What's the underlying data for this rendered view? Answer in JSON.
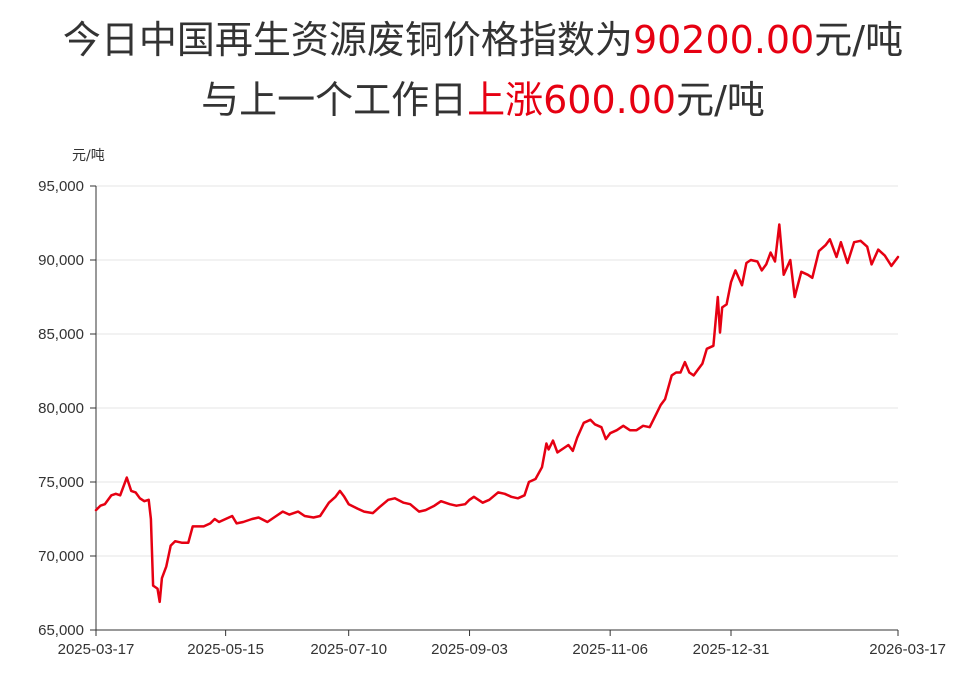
{
  "headline": {
    "line1_prefix": "今日中国再生资源废铜价格指数为",
    "line1_value": "90200.00",
    "line1_suffix": "元/吨",
    "line2_prefix": "与上一个工作日",
    "line2_change": "上涨600.00",
    "line2_suffix": "元/吨"
  },
  "colors": {
    "line": "#e60012",
    "highlight": "#e60012",
    "grid": "#e6e6e6",
    "axis": "#333333"
  },
  "chart_data": {
    "type": "line",
    "title": "",
    "xlabel": "",
    "ylabel": "元/吨",
    "x_axis_type": "date",
    "xlim": [
      "2025-03-17",
      "2026-03-17"
    ],
    "ylim": [
      65000,
      95000
    ],
    "grid": true,
    "legend": "none",
    "x_tick_labels": [
      "2025-03-17",
      "2025-05-15",
      "2025-07-10",
      "2025-09-03",
      "2025-11-06",
      "2025-12-31",
      "2026-03-17"
    ],
    "y_tick_labels": [
      "65,000",
      "70,000",
      "75,000",
      "80,000",
      "85,000",
      "90,000",
      "95,000"
    ],
    "y_tick_values": [
      65000,
      70000,
      75000,
      80000,
      85000,
      90000,
      95000
    ],
    "series": [
      {
        "values": [
          [
            "2025-03-17",
            73100
          ],
          [
            "2025-03-19",
            73400
          ],
          [
            "2025-03-21",
            73500
          ],
          [
            "2025-03-24",
            74100
          ],
          [
            "2025-03-26",
            74200
          ],
          [
            "2025-03-28",
            74100
          ],
          [
            "2025-03-31",
            75300
          ],
          [
            "2025-04-02",
            74400
          ],
          [
            "2025-04-04",
            74300
          ],
          [
            "2025-04-06",
            73900
          ],
          [
            "2025-04-08",
            73700
          ],
          [
            "2025-04-10",
            73800
          ],
          [
            "2025-04-11",
            72500
          ],
          [
            "2025-04-12",
            68000
          ],
          [
            "2025-04-14",
            67800
          ],
          [
            "2025-04-15",
            66900
          ],
          [
            "2025-04-16",
            68500
          ],
          [
            "2025-04-18",
            69300
          ],
          [
            "2025-04-20",
            70700
          ],
          [
            "2025-04-22",
            71000
          ],
          [
            "2025-04-25",
            70900
          ],
          [
            "2025-04-28",
            70900
          ],
          [
            "2025-04-30",
            72000
          ],
          [
            "2025-05-05",
            72000
          ],
          [
            "2025-05-08",
            72200
          ],
          [
            "2025-05-10",
            72500
          ],
          [
            "2025-05-12",
            72300
          ],
          [
            "2025-05-15",
            72500
          ],
          [
            "2025-05-18",
            72700
          ],
          [
            "2025-05-20",
            72200
          ],
          [
            "2025-05-23",
            72300
          ],
          [
            "2025-05-27",
            72500
          ],
          [
            "2025-05-30",
            72600
          ],
          [
            "2025-06-03",
            72300
          ],
          [
            "2025-06-06",
            72600
          ],
          [
            "2025-06-10",
            73000
          ],
          [
            "2025-06-13",
            72800
          ],
          [
            "2025-06-17",
            73000
          ],
          [
            "2025-06-20",
            72700
          ],
          [
            "2025-06-24",
            72600
          ],
          [
            "2025-06-27",
            72700
          ],
          [
            "2025-07-01",
            73600
          ],
          [
            "2025-07-04",
            74000
          ],
          [
            "2025-07-06",
            74400
          ],
          [
            "2025-07-08",
            74000
          ],
          [
            "2025-07-10",
            73500
          ],
          [
            "2025-07-14",
            73200
          ],
          [
            "2025-07-17",
            73000
          ],
          [
            "2025-07-21",
            72900
          ],
          [
            "2025-07-24",
            73300
          ],
          [
            "2025-07-28",
            73800
          ],
          [
            "2025-07-31",
            73900
          ],
          [
            "2025-08-04",
            73600
          ],
          [
            "2025-08-07",
            73500
          ],
          [
            "2025-08-11",
            73000
          ],
          [
            "2025-08-14",
            73100
          ],
          [
            "2025-08-18",
            73400
          ],
          [
            "2025-08-21",
            73700
          ],
          [
            "2025-08-25",
            73500
          ],
          [
            "2025-08-28",
            73400
          ],
          [
            "2025-09-01",
            73500
          ],
          [
            "2025-09-03",
            73800
          ],
          [
            "2025-09-05",
            74000
          ],
          [
            "2025-09-09",
            73600
          ],
          [
            "2025-09-12",
            73800
          ],
          [
            "2025-09-16",
            74300
          ],
          [
            "2025-09-19",
            74200
          ],
          [
            "2025-09-22",
            74000
          ],
          [
            "2025-09-25",
            73900
          ],
          [
            "2025-09-28",
            74100
          ],
          [
            "2025-09-30",
            75000
          ],
          [
            "2025-10-03",
            75200
          ],
          [
            "2025-10-06",
            76000
          ],
          [
            "2025-10-08",
            77600
          ],
          [
            "2025-10-09",
            77200
          ],
          [
            "2025-10-11",
            77800
          ],
          [
            "2025-10-13",
            77000
          ],
          [
            "2025-10-16",
            77300
          ],
          [
            "2025-10-18",
            77500
          ],
          [
            "2025-10-20",
            77100
          ],
          [
            "2025-10-22",
            78000
          ],
          [
            "2025-10-25",
            79000
          ],
          [
            "2025-10-28",
            79200
          ],
          [
            "2025-10-30",
            78900
          ],
          [
            "2025-11-02",
            78700
          ],
          [
            "2025-11-04",
            77900
          ],
          [
            "2025-11-06",
            78300
          ],
          [
            "2025-11-09",
            78500
          ],
          [
            "2025-11-12",
            78800
          ],
          [
            "2025-11-15",
            78500
          ],
          [
            "2025-11-18",
            78500
          ],
          [
            "2025-11-21",
            78800
          ],
          [
            "2025-11-24",
            78700
          ],
          [
            "2025-11-27",
            79600
          ],
          [
            "2025-11-29",
            80200
          ],
          [
            "2025-12-01",
            80600
          ],
          [
            "2025-12-04",
            82200
          ],
          [
            "2025-12-06",
            82400
          ],
          [
            "2025-12-08",
            82400
          ],
          [
            "2025-12-10",
            83100
          ],
          [
            "2025-12-12",
            82400
          ],
          [
            "2025-12-14",
            82200
          ],
          [
            "2025-12-16",
            82600
          ],
          [
            "2025-12-18",
            83000
          ],
          [
            "2025-12-20",
            84000
          ],
          [
            "2025-12-23",
            84200
          ],
          [
            "2025-12-25",
            87500
          ],
          [
            "2025-12-26",
            85100
          ],
          [
            "2025-12-27",
            86800
          ],
          [
            "2025-12-29",
            87000
          ],
          [
            "2025-12-31",
            88500
          ],
          [
            "2026-01-02",
            89300
          ],
          [
            "2026-01-05",
            88300
          ],
          [
            "2026-01-07",
            89800
          ],
          [
            "2026-01-09",
            90000
          ],
          [
            "2026-01-12",
            89900
          ],
          [
            "2026-01-14",
            89300
          ],
          [
            "2026-01-16",
            89700
          ],
          [
            "2026-01-18",
            90500
          ],
          [
            "2026-01-20",
            89900
          ],
          [
            "2026-01-22",
            92400
          ],
          [
            "2026-01-24",
            89000
          ],
          [
            "2026-01-27",
            90000
          ],
          [
            "2026-01-29",
            87500
          ],
          [
            "2026-02-01",
            89200
          ],
          [
            "2026-02-04",
            89000
          ],
          [
            "2026-02-06",
            88800
          ],
          [
            "2026-02-09",
            90600
          ],
          [
            "2026-02-12",
            91000
          ],
          [
            "2026-02-14",
            91400
          ],
          [
            "2026-02-17",
            90200
          ],
          [
            "2026-02-19",
            91200
          ],
          [
            "2026-02-22",
            89800
          ],
          [
            "2026-02-25",
            91200
          ],
          [
            "2026-02-28",
            91300
          ],
          [
            "2026-03-03",
            90900
          ],
          [
            "2026-03-05",
            89700
          ],
          [
            "2026-03-08",
            90700
          ],
          [
            "2026-03-11",
            90300
          ],
          [
            "2026-03-14",
            89600
          ],
          [
            "2026-03-17",
            90200
          ]
        ]
      }
    ]
  }
}
